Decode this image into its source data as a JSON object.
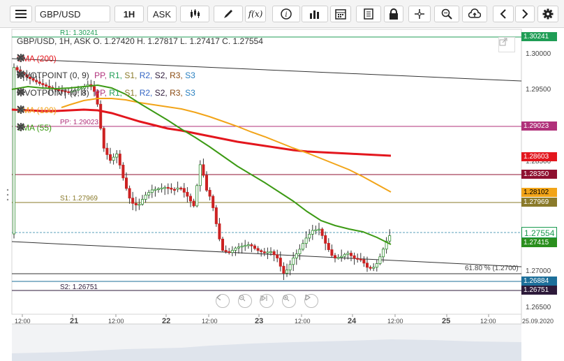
{
  "toolbar": {
    "symbol": "GBP/USD",
    "timeframe": "1H",
    "price_type": "ASK",
    "function_label": "f(x)"
  },
  "chart": {
    "header": "GBP/USD, 1H, ASK   O. 1.27420 H. 1.27817 L. 1.27417 C. 1.27554",
    "indicators": {
      "sma200": "SMA (200)",
      "pivot1": [
        "PIVOTPOINT (0, 9)",
        "PP,",
        "R1,",
        "S1,",
        "R2,",
        "S2,",
        "R3,",
        "S3"
      ],
      "pivot2": [
        "PIVOTPOINT (0, 8)",
        "PP,",
        "R1,",
        "S1,",
        "R2,",
        "S2,",
        "R3,",
        "S3"
      ],
      "sma100": "SMA (100)",
      "sma55": "SMA (55)"
    },
    "level_labels": {
      "r1": "R1: 1.30241",
      "pp": "PP: 1.29023",
      "s1": "S1: 1.27969",
      "s2": "S2: 1.26751",
      "fib": "61.80 % (1.2700)"
    },
    "price_axis": {
      "ticks": [
        "1.30000",
        "1.29500",
        "1.28500",
        "1.27000",
        "1.26500"
      ],
      "tags": [
        {
          "text": "1.30241",
          "bg": "#1f9d55",
          "fg": "#ffffff"
        },
        {
          "text": "1.29023",
          "bg": "#b0307a",
          "fg": "#ffffff"
        },
        {
          "text": "1.28603",
          "bg": "#e3161d",
          "fg": "#ffffff"
        },
        {
          "text": "1.28350",
          "bg": "#8f1030",
          "fg": "#ffffff"
        },
        {
          "text": "1.28102",
          "bg": "#f2a418",
          "fg": "#000000"
        },
        {
          "text": "1.27969",
          "bg": "#8a7a2a",
          "fg": "#ffffff"
        },
        {
          "text": "1.27554",
          "bg": "#ffffff",
          "fg": "#1a9a50"
        },
        {
          "text": "1.27415",
          "bg": "#2a8f1d",
          "fg": "#ffffff"
        },
        {
          "text": "1.26884",
          "bg": "#1d6f9a",
          "fg": "#ffffff"
        },
        {
          "text": "1.26751",
          "bg": "#2d1a3a",
          "fg": "#ffffff"
        }
      ]
    },
    "time_axis": [
      "12:00",
      "21",
      "12:00",
      "22",
      "12:00",
      "23",
      "12:00",
      "24",
      "12:00",
      "25",
      "12:00",
      "25.09.2020"
    ],
    "colors": {
      "sma200": "#e3161d",
      "sma100": "#f2a418",
      "sma55": "#3c9a14",
      "up_candle": "#2e8b2e",
      "down_candle": "#cc2222",
      "background": "#ffffff"
    }
  }
}
